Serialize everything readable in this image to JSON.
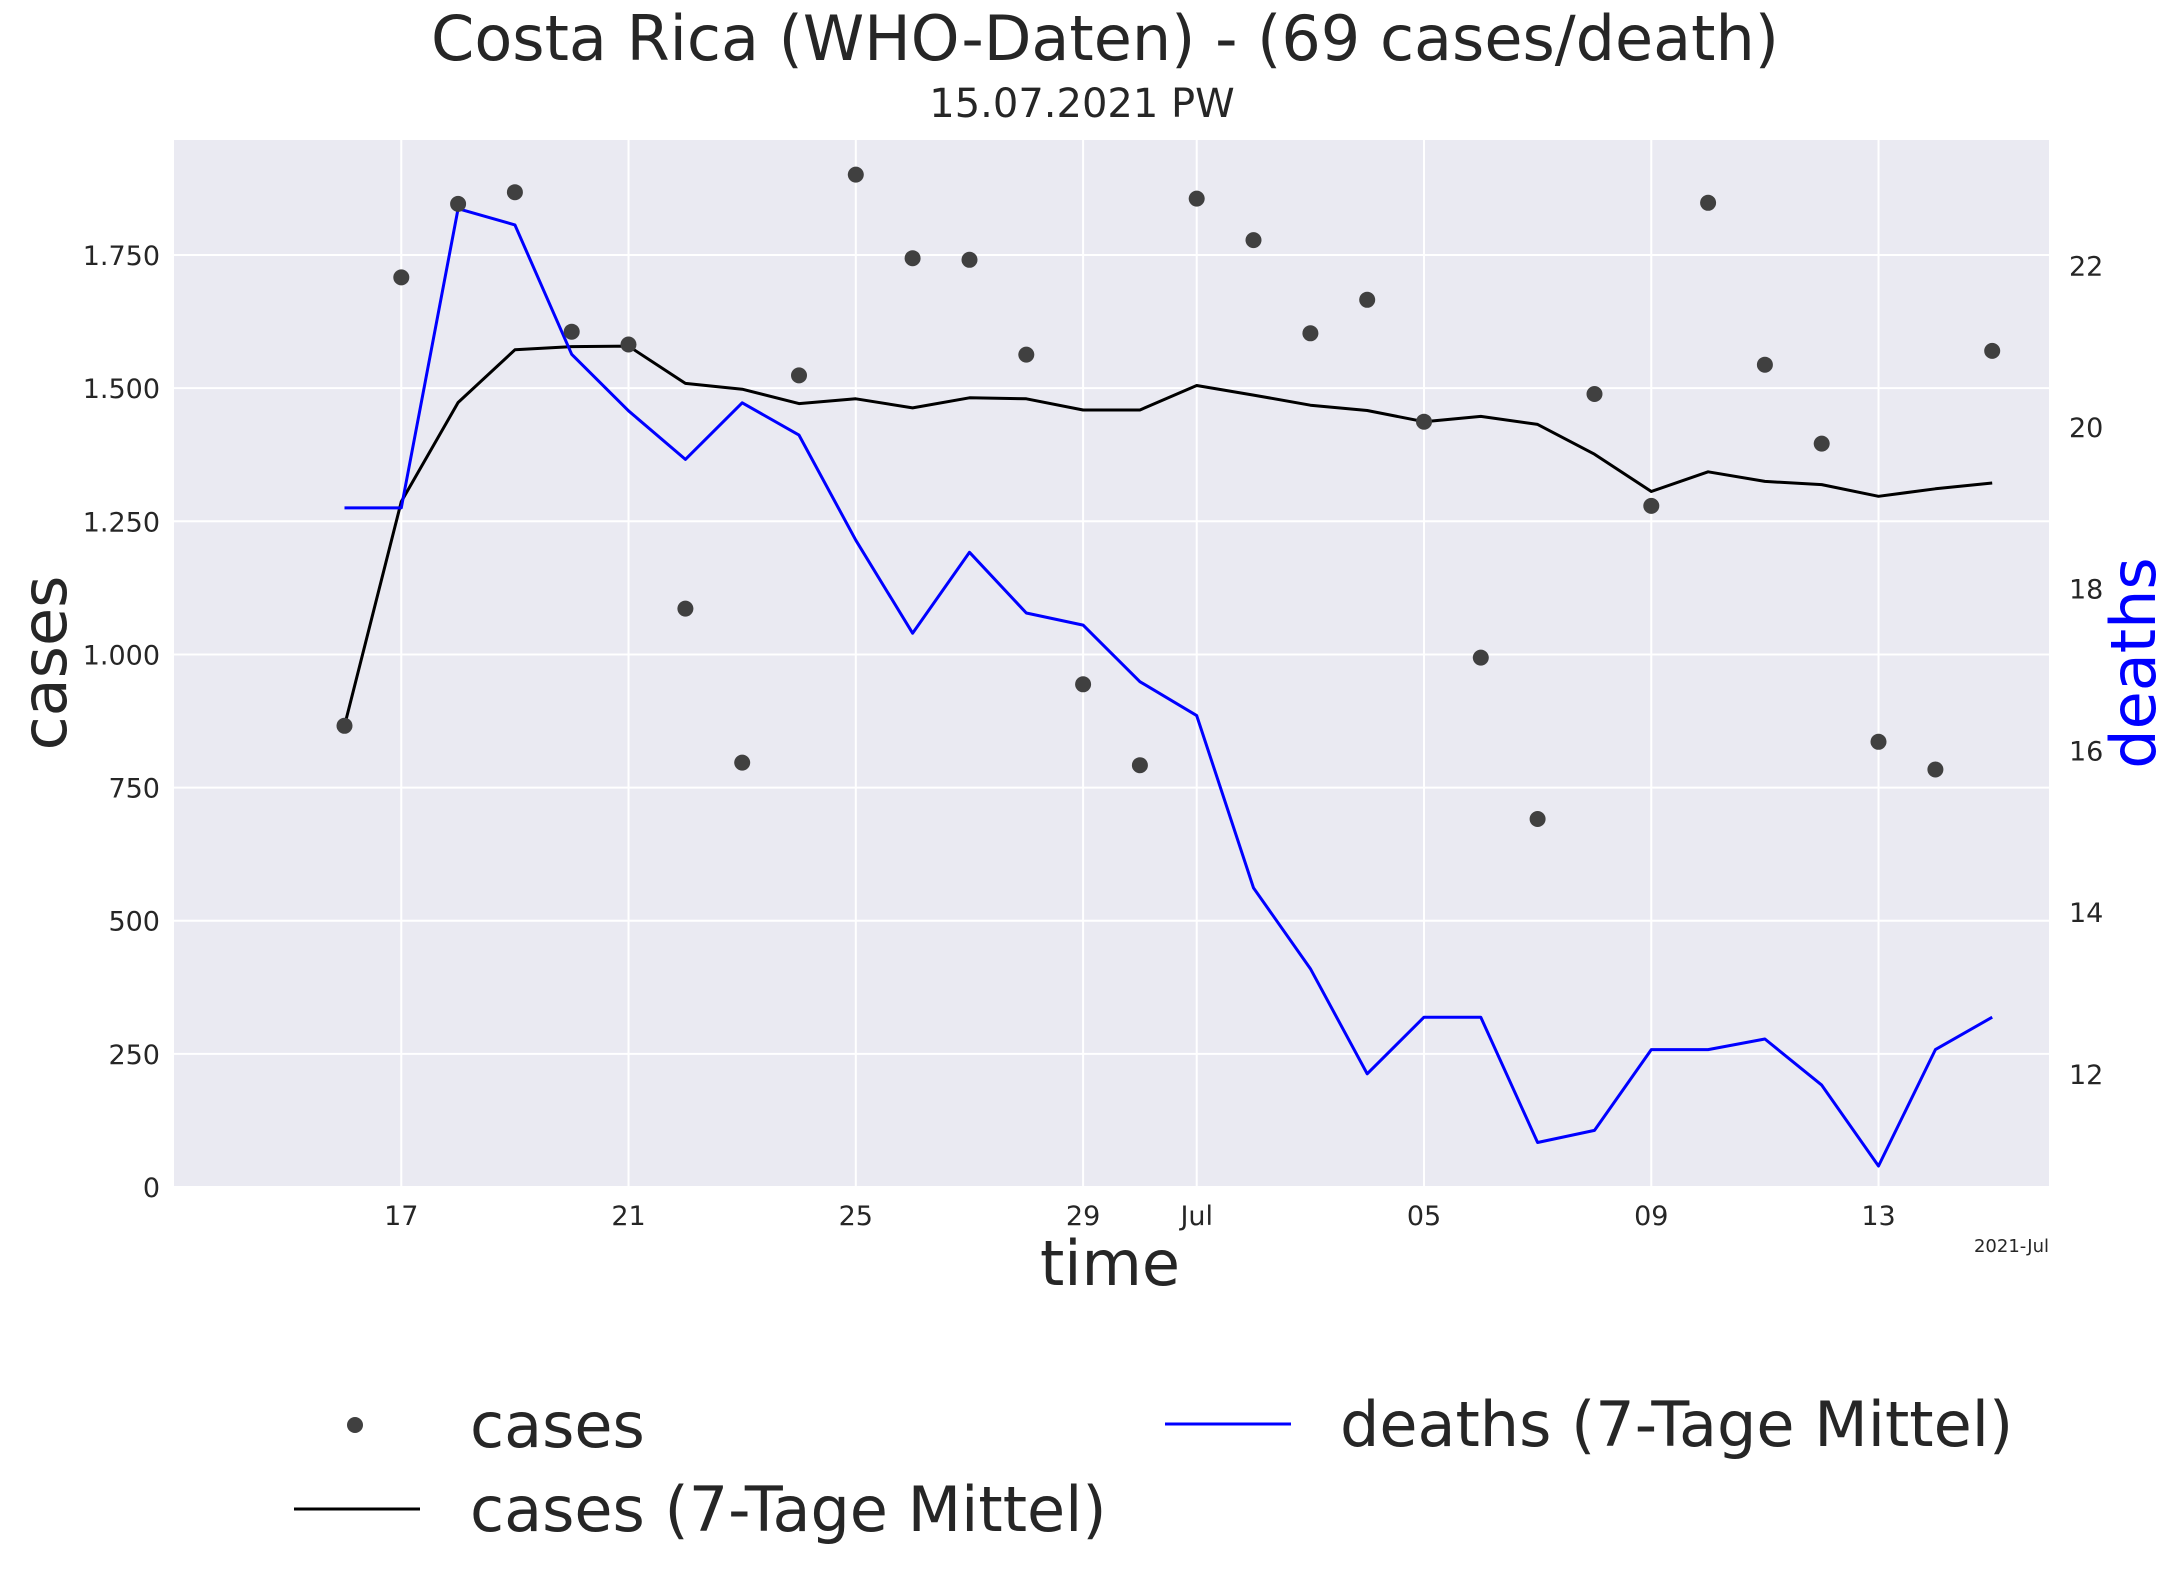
{
  "chart_data": {
    "type": "line",
    "title": "Costa Rica (WHO-Daten) - (69 cases/death)",
    "subtitle": "15.07.2021 PW",
    "xlabel": "time",
    "ylabel": "cases",
    "y2label": "deaths",
    "x_offset_label": "2021-Jul",
    "x_tick_labels": [
      {
        "date": "2021-06-17",
        "label": "17"
      },
      {
        "date": "2021-06-21",
        "label": "21"
      },
      {
        "date": "2021-06-25",
        "label": "25"
      },
      {
        "date": "2021-06-29",
        "label": "29"
      },
      {
        "date": "2021-07-01",
        "label": "Jul"
      },
      {
        "date": "2021-07-05",
        "label": "05"
      },
      {
        "date": "2021-07-09",
        "label": "09"
      },
      {
        "date": "2021-07-13",
        "label": "13"
      }
    ],
    "xlim": [
      "2021-06-13",
      "2021-07-16"
    ],
    "ylim": [
      0,
      1966
    ],
    "y_ticks": [
      0,
      250,
      500,
      750,
      1000,
      1250,
      1500,
      1750
    ],
    "y_tick_labels": [
      "0",
      "250",
      "500",
      "750",
      "1.000",
      "1.250",
      "1.500",
      "1.750"
    ],
    "y2lim": [
      10.6,
      23.55
    ],
    "y2_ticks": [
      12,
      14,
      16,
      18,
      20,
      22
    ],
    "y2_tick_labels": [
      "12",
      "14",
      "16",
      "18",
      "20",
      "22"
    ],
    "grid": true,
    "legend_position": "bottom",
    "x": [
      "2021-06-16",
      "2021-06-17",
      "2021-06-18",
      "2021-06-19",
      "2021-06-20",
      "2021-06-21",
      "2021-06-22",
      "2021-06-23",
      "2021-06-24",
      "2021-06-25",
      "2021-06-26",
      "2021-06-27",
      "2021-06-28",
      "2021-06-29",
      "2021-06-30",
      "2021-07-01",
      "2021-07-02",
      "2021-07-03",
      "2021-07-04",
      "2021-07-05",
      "2021-07-06",
      "2021-07-07",
      "2021-07-08",
      "2021-07-09",
      "2021-07-10",
      "2021-07-11",
      "2021-07-12",
      "2021-07-13",
      "2021-07-14",
      "2021-07-15"
    ],
    "series": [
      {
        "name": "cases",
        "kind": "scatter",
        "axis": "left",
        "color": "#404040",
        "values": [
          866,
          1708,
          1846,
          1868,
          1606,
          1582,
          1086,
          797,
          1524,
          1901,
          1744,
          1741,
          1563,
          944,
          792,
          1856,
          1778,
          1603,
          1666,
          1437,
          994,
          691,
          1489,
          1279,
          1848,
          1544,
          1396,
          836,
          784,
          1570
        ]
      },
      {
        "name": "cases (7-Tage Mittel)",
        "kind": "line",
        "axis": "left",
        "color": "#000000",
        "values": [
          866,
          1287,
          1473,
          1572,
          1578,
          1579,
          1509,
          1498,
          1471,
          1480,
          1463,
          1482,
          1480,
          1459,
          1459,
          1505,
          1487,
          1468,
          1458,
          1437,
          1447,
          1432,
          1376,
          1306,
          1343,
          1325,
          1319,
          1297,
          1311,
          1322
        ]
      },
      {
        "name": "deaths (7-Tage Mittel)",
        "kind": "line",
        "axis": "right",
        "color": "#0000ff",
        "values": [
          19.0,
          19.0,
          22.7,
          22.5,
          20.9,
          20.2,
          19.6,
          20.3,
          19.9,
          18.6,
          17.45,
          18.45,
          17.7,
          17.55,
          16.85,
          16.43,
          14.3,
          13.3,
          12.0,
          12.7,
          12.7,
          11.15,
          11.3,
          12.3,
          12.3,
          12.43,
          11.86,
          10.86,
          12.3,
          12.7
        ]
      }
    ]
  }
}
